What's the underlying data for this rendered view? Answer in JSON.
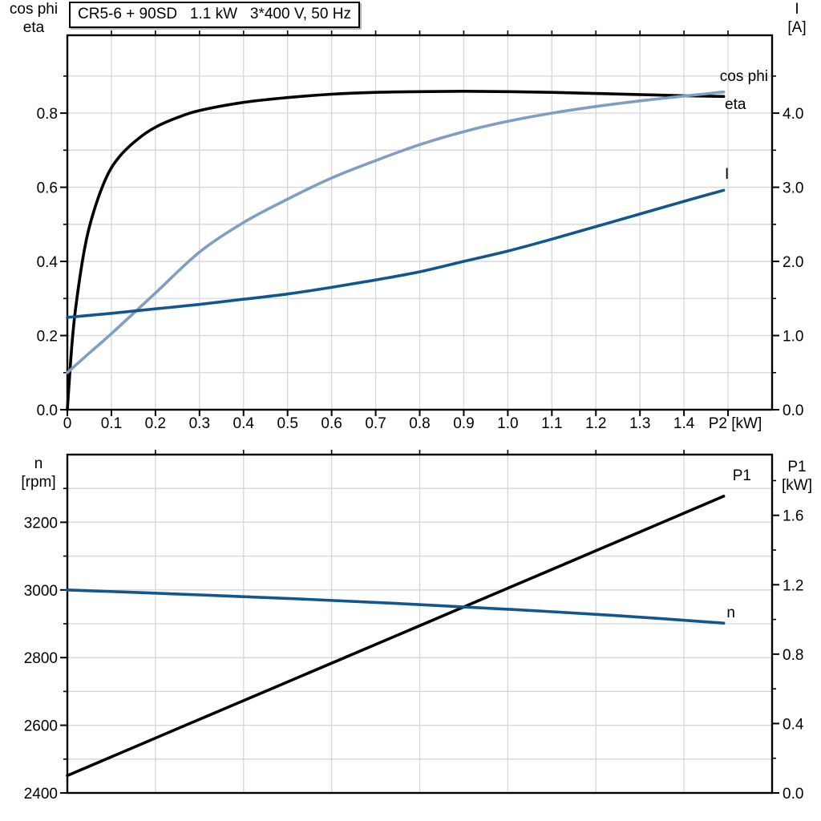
{
  "title_box": {
    "text": "CR5-6 + 90SD   1.1 kW   3*400 V, 50 Hz"
  },
  "axis_headers": {
    "top_left_line1": "cos phi",
    "top_left_line2": "eta",
    "top_right_line1": "I",
    "top_right_line2": "[A]",
    "bottom_left_line1": "n",
    "bottom_left_line2": "[rpm]",
    "bottom_right_line1": "P1",
    "bottom_right_line2": "[kW]"
  },
  "colors": {
    "black": "#000000",
    "light_blue": "#7e9ec3",
    "dark_blue": "#12568e",
    "grid": "#d6d6d6"
  },
  "chart_data": [
    {
      "type": "line",
      "title": "CR5-6 + 90SD   1.1 kW   3*400 V, 50 Hz",
      "x": {
        "label": "P2 [kW]",
        "min": 0,
        "max": 1.6,
        "ticks": [
          0,
          0.1,
          0.2,
          0.3,
          0.4,
          0.5,
          0.6,
          0.7,
          0.8,
          0.9,
          1.0,
          1.1,
          1.2,
          1.3,
          1.4,
          1.5
        ],
        "tick_labels": [
          "0",
          "0.1",
          "0.2",
          "0.3",
          "0.4",
          "0.5",
          "0.6",
          "0.7",
          "0.8",
          "0.9",
          "1.0",
          "1.1",
          "1.2",
          "1.3",
          "1.4",
          ""
        ],
        "grid": [
          0.1,
          0.2,
          0.3,
          0.4,
          0.5,
          0.6,
          0.7,
          0.8,
          0.9,
          1.0,
          1.1,
          1.2,
          1.3,
          1.4,
          1.5
        ]
      },
      "y_left": {
        "label": "cos phi / eta",
        "min": 0,
        "max": 1.01,
        "ticks": [
          0,
          0.2,
          0.4,
          0.6,
          0.8
        ],
        "tick_labels": [
          "0.0",
          "0.2",
          "0.4",
          "0.6",
          "0.8"
        ],
        "minor": [
          0.1,
          0.3,
          0.5,
          0.7,
          0.9
        ],
        "grid": [
          0.1,
          0.2,
          0.3,
          0.4,
          0.5,
          0.6,
          0.7,
          0.8,
          0.9
        ]
      },
      "y_right": {
        "label": "I [A]",
        "min": 0,
        "max": 5.05,
        "ticks": [
          0,
          1,
          2,
          3,
          4
        ],
        "tick_labels": [
          "0.0",
          "1.0",
          "2.0",
          "3.0",
          "4.0"
        ],
        "minor": [
          0.5,
          1.5,
          2.5,
          3.5,
          4.5
        ]
      },
      "series": [
        {
          "name": "eta",
          "label": "eta",
          "axis": "left",
          "color": "#000000",
          "x": [
            0,
            0.01,
            0.02,
            0.04,
            0.06,
            0.09,
            0.12,
            0.16,
            0.2,
            0.25,
            0.3,
            0.4,
            0.5,
            0.6,
            0.7,
            0.8,
            0.9,
            1.0,
            1.1,
            1.2,
            1.3,
            1.4,
            1.49
          ],
          "y": [
            0,
            0.17,
            0.285,
            0.44,
            0.535,
            0.63,
            0.685,
            0.73,
            0.762,
            0.788,
            0.807,
            0.829,
            0.842,
            0.851,
            0.856,
            0.858,
            0.859,
            0.858,
            0.856,
            0.853,
            0.85,
            0.847,
            0.845
          ]
        },
        {
          "name": "cos phi",
          "label": "cos phi",
          "axis": "left",
          "color": "#7e9ec3",
          "x": [
            0,
            0.05,
            0.1,
            0.2,
            0.3,
            0.4,
            0.5,
            0.6,
            0.7,
            0.8,
            0.9,
            1.0,
            1.1,
            1.2,
            1.3,
            1.4,
            1.49
          ],
          "y": [
            0.1,
            0.153,
            0.205,
            0.315,
            0.425,
            0.505,
            0.568,
            0.625,
            0.672,
            0.715,
            0.75,
            0.778,
            0.8,
            0.818,
            0.833,
            0.846,
            0.857
          ]
        },
        {
          "name": "I",
          "label": "I",
          "axis": "right",
          "color": "#12568e",
          "x": [
            0,
            0.1,
            0.2,
            0.3,
            0.4,
            0.5,
            0.6,
            0.7,
            0.8,
            0.9,
            1.0,
            1.1,
            1.2,
            1.3,
            1.4,
            1.49
          ],
          "y": [
            1.245,
            1.3,
            1.36,
            1.42,
            1.49,
            1.56,
            1.65,
            1.75,
            1.86,
            2.0,
            2.14,
            2.3,
            2.47,
            2.64,
            2.81,
            2.96
          ]
        }
      ]
    },
    {
      "type": "line",
      "x": {
        "label": "",
        "min": 0,
        "max": 1.6,
        "ticks": [],
        "tick_labels": [],
        "grid": [
          0.2,
          0.4,
          0.6,
          0.8,
          1.0,
          1.2,
          1.4
        ]
      },
      "y_left": {
        "label": "n [rpm]",
        "min": 2400,
        "max": 3400,
        "ticks": [
          2400,
          2600,
          2800,
          3000,
          3200
        ],
        "tick_labels": [
          "2400",
          "2600",
          "2800",
          "3000",
          "3200"
        ],
        "minor": [
          2500,
          2700,
          2900,
          3100,
          3300
        ],
        "grid": [
          2500,
          2600,
          2700,
          2800,
          2900,
          3000,
          3100,
          3200,
          3300
        ]
      },
      "y_right": {
        "label": "P1 [kW]",
        "min": 0,
        "max": 1.95,
        "ticks": [
          0,
          0.4,
          0.8,
          1.2,
          1.6
        ],
        "tick_labels": [
          "0.0",
          "0.4",
          "0.8",
          "1.2",
          "1.6"
        ],
        "minor": [
          0.2,
          0.6,
          1.0,
          1.4,
          1.8
        ]
      },
      "series": [
        {
          "name": "P1",
          "label": "P1",
          "axis": "right",
          "color": "#000000",
          "x": [
            0,
            0.25,
            0.5,
            0.75,
            1.0,
            1.25,
            1.49
          ],
          "y": [
            0.1,
            0.37,
            0.64,
            0.91,
            1.18,
            1.45,
            1.71
          ]
        },
        {
          "name": "n",
          "label": "n",
          "axis": "left",
          "color": "#12568e",
          "x": [
            0,
            0.25,
            0.5,
            0.75,
            1.0,
            1.25,
            1.49
          ],
          "y": [
            3000,
            2988,
            2975,
            2960,
            2943,
            2924,
            2902
          ]
        }
      ]
    }
  ]
}
